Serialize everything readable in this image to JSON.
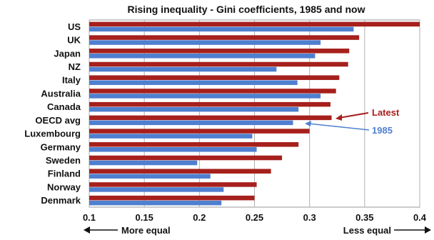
{
  "chart_data": {
    "type": "bar",
    "orientation": "horizontal",
    "title": "Rising inequality - Gini coefficients, 1985 and now",
    "categories": [
      "US",
      "UK",
      "Japan",
      "NZ",
      "Italy",
      "Australia",
      "Canada",
      "OECD avg",
      "Luxembourg",
      "Germany",
      "Sweden",
      "Finland",
      "Norway",
      "Denmark"
    ],
    "series": [
      {
        "name": "Latest",
        "color": "#a6201c",
        "values": [
          0.4,
          0.345,
          0.336,
          0.335,
          0.327,
          0.324,
          0.319,
          0.32,
          0.3,
          0.29,
          0.275,
          0.265,
          0.252,
          0.25
        ]
      },
      {
        "name": "1985",
        "color": "#4f7fcf",
        "values": [
          0.34,
          0.31,
          0.305,
          0.27,
          0.289,
          0.31,
          0.29,
          0.285,
          0.248,
          0.252,
          0.198,
          0.21,
          0.222,
          0.22
        ]
      }
    ],
    "xlim": [
      0.1,
      0.4
    ],
    "x_ticks": [
      "0.1",
      "0.15",
      "0.2",
      "0.25",
      "0.3",
      "0.35",
      "0.4"
    ],
    "grid": true,
    "annotations": {
      "left_note": "More equal",
      "right_note": "Less equal",
      "latest_label": "Latest",
      "base_label": "1985"
    }
  }
}
